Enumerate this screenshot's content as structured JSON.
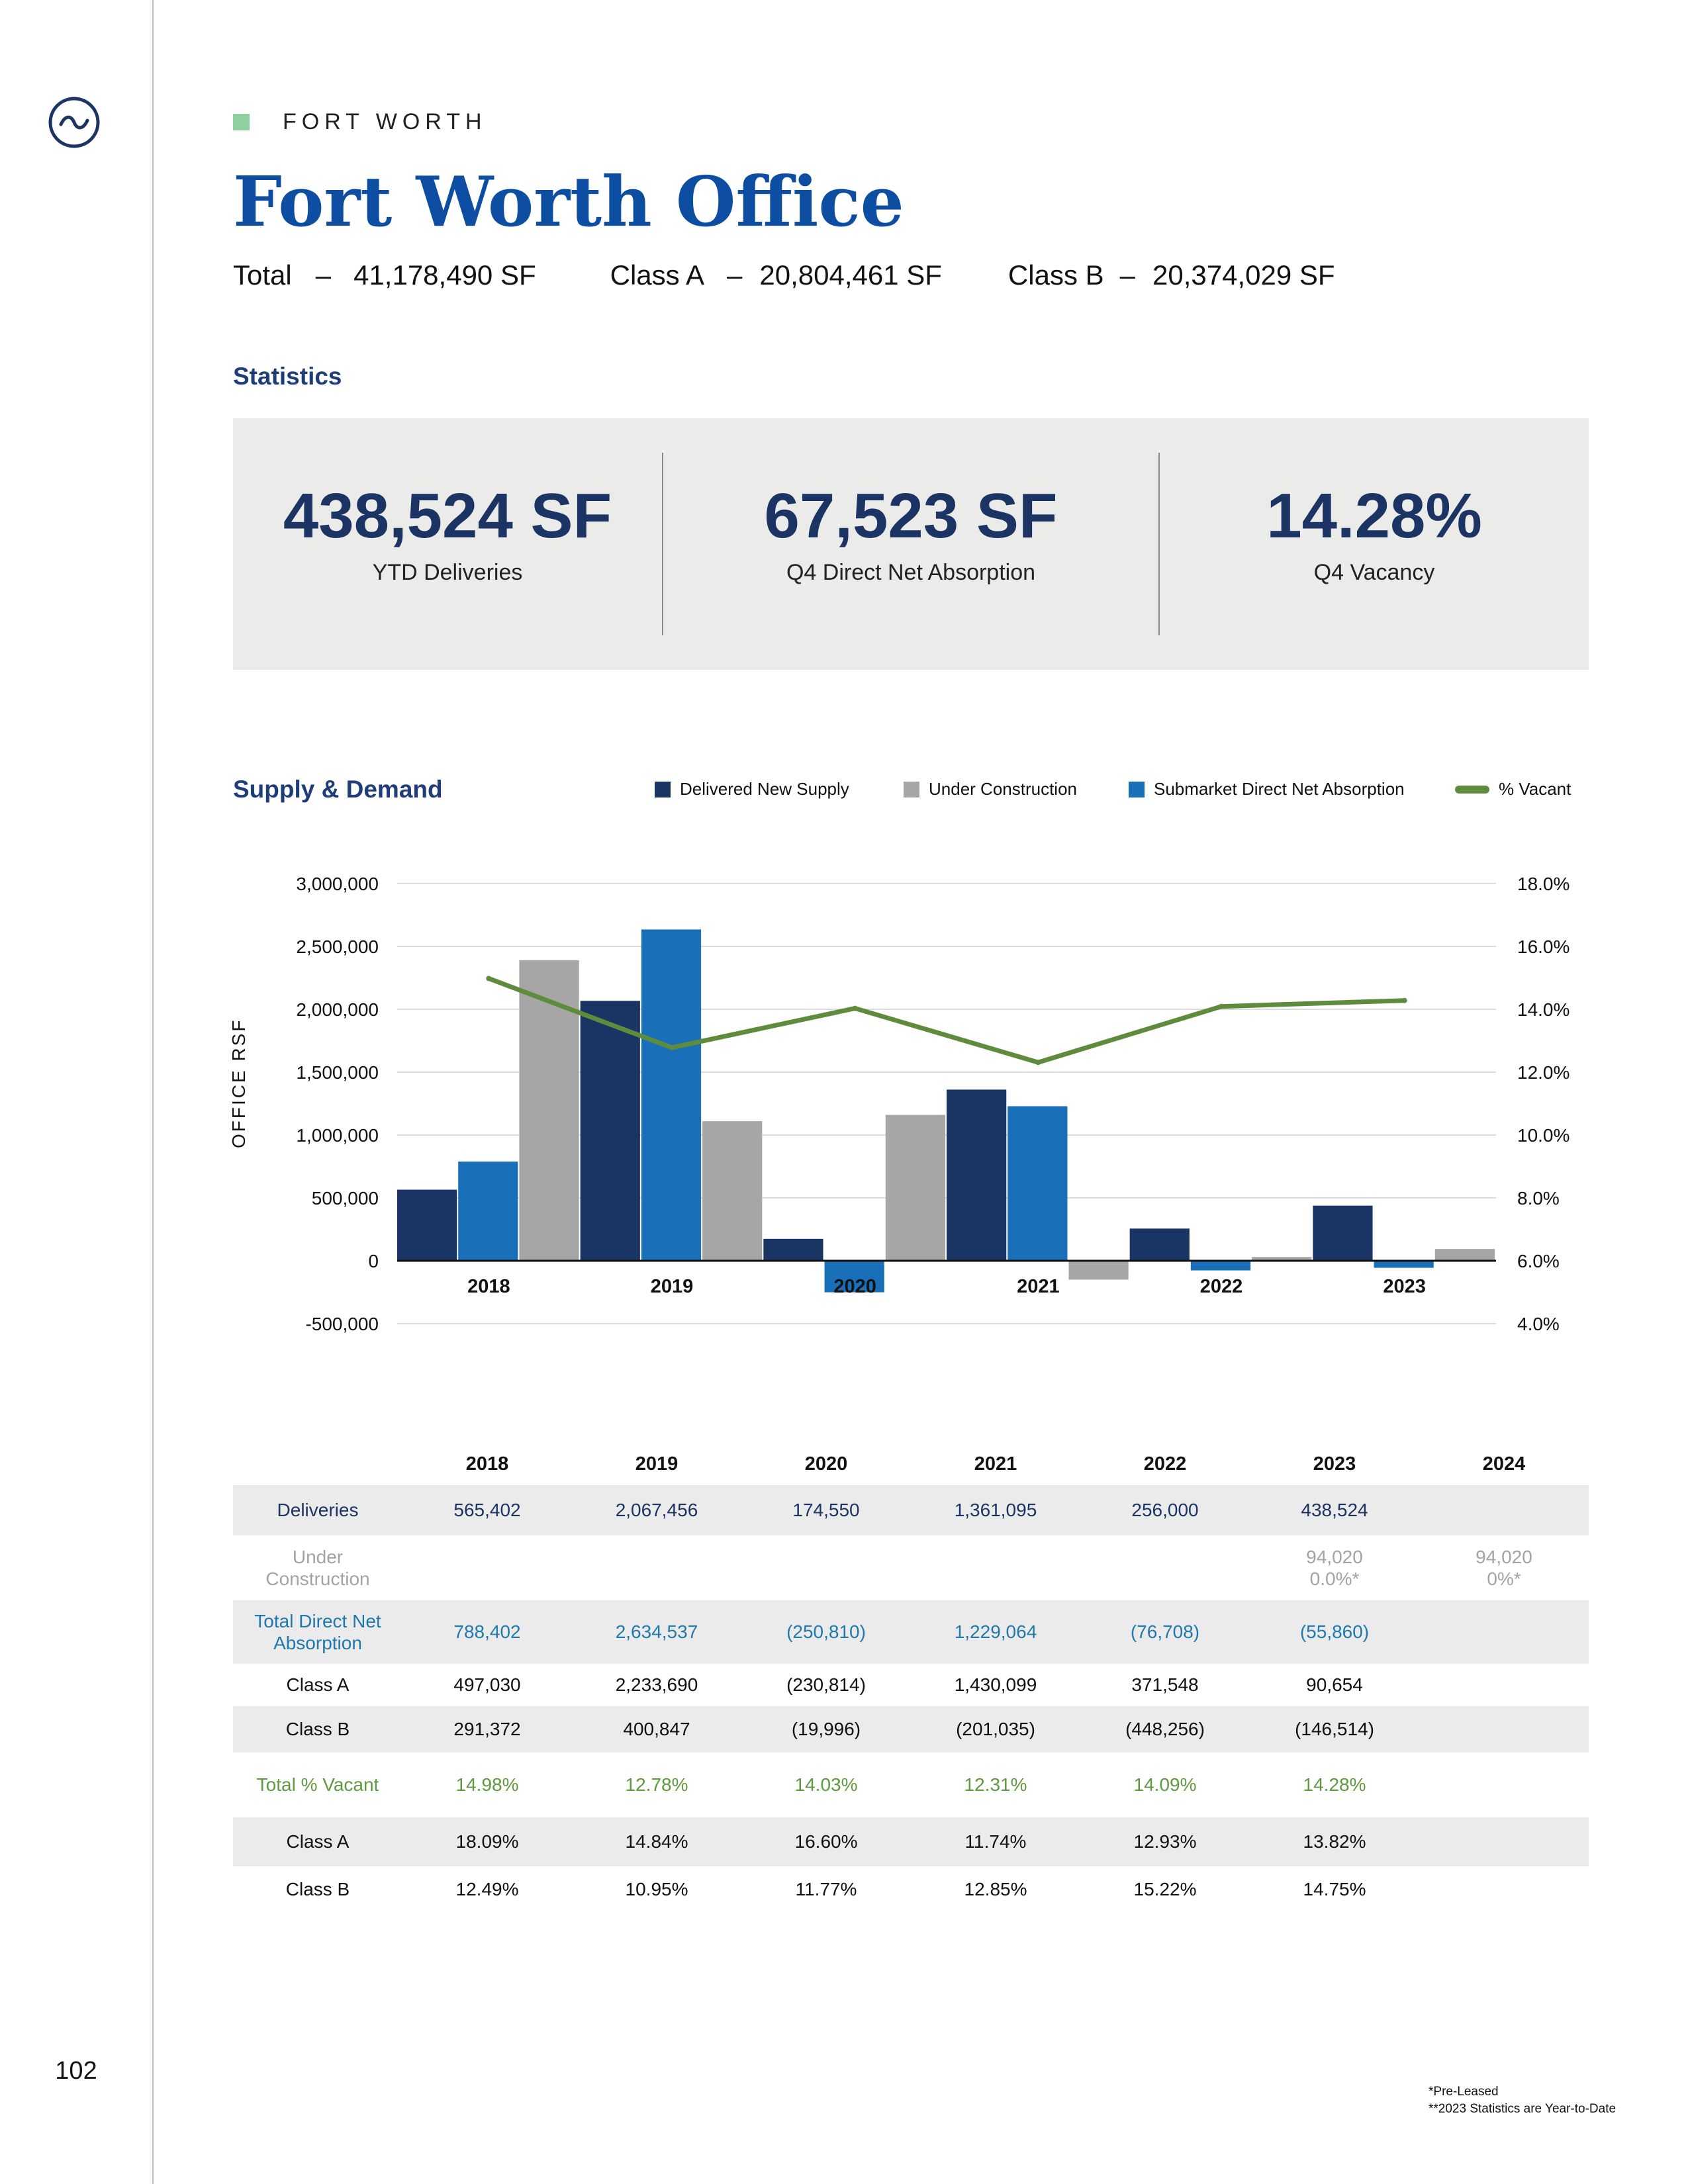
{
  "page": {
    "number": "102"
  },
  "header": {
    "eyebrow": "FORT WORTH",
    "title": "Fort Worth Office",
    "total_label": "Total",
    "total_value": "41,178,490 SF",
    "class_a_label": "Class A",
    "class_a_value": "20,804,461 SF",
    "class_b_label": "Class B",
    "class_b_value": "20,374,029 SF",
    "dash": "–"
  },
  "statistics": {
    "heading": "Statistics",
    "items": [
      {
        "value": "438,524 SF",
        "label": "YTD Deliveries"
      },
      {
        "value": "67,523 SF",
        "label": "Q4 Direct Net Absorption"
      },
      {
        "value": "14.28%",
        "label": "Q4 Vacancy"
      }
    ]
  },
  "supply_demand": {
    "heading": "Supply & Demand"
  },
  "colors": {
    "delivered": "#1a3564",
    "under_construction": "#a6a6a6",
    "absorption": "#1a6fb9",
    "vacant": "#5e8c3c"
  },
  "chart_data": {
    "type": "bar",
    "title": "",
    "ylabel": "OFFICE RSF",
    "ylim": [
      -500000,
      3000000
    ],
    "y2lim": [
      4.0,
      18.0
    ],
    "y_ticks": [
      "3,000,000",
      "2,500,000",
      "2,000,000",
      "1,500,000",
      "1,000,000",
      "500,000",
      "0",
      "-500,000"
    ],
    "y2_ticks": [
      "18.0%",
      "16.0%",
      "14.0%",
      "12.0%",
      "10.0%",
      "8.0%",
      "6.0%",
      "4.0%"
    ],
    "categories": [
      "2018",
      "2019",
      "2020",
      "2021",
      "2022",
      "2023"
    ],
    "legend_position": "top",
    "grid": true,
    "series": [
      {
        "name": "Delivered New Supply",
        "kind": "bar",
        "values": [
          565402,
          2067456,
          174550,
          1361095,
          256000,
          438524
        ]
      },
      {
        "name": "Under Construction",
        "kind": "bar",
        "values": [
          2390000,
          1110000,
          1160000,
          -150000,
          30000,
          94020
        ]
      },
      {
        "name": "Submarket Direct Net Absorption",
        "kind": "bar",
        "values": [
          788402,
          2634537,
          -250810,
          1229064,
          -76708,
          -55860
        ]
      },
      {
        "name": "% Vacant",
        "kind": "line",
        "axis": "right",
        "values": [
          14.98,
          12.78,
          14.03,
          12.31,
          14.09,
          14.28
        ]
      }
    ]
  },
  "table": {
    "years": [
      "2018",
      "2019",
      "2020",
      "2021",
      "2022",
      "2023",
      "2024"
    ],
    "rows": [
      {
        "label": "Deliveries",
        "cells": [
          "565,402",
          "2,067,456",
          "174,550",
          "1,361,095",
          "256,000",
          "438,524",
          ""
        ]
      },
      {
        "label": "Under Construction",
        "cells": [
          "",
          "",
          "",
          "",
          "",
          "94,020 0.0%*",
          "94,020 0%*"
        ]
      },
      {
        "label": "Total Direct Net Absorption",
        "cells": [
          "788,402",
          "2,634,537",
          "(250,810)",
          "1,229,064",
          "(76,708)",
          "(55,860)",
          ""
        ]
      },
      {
        "label": "Class A",
        "cells": [
          "497,030",
          "2,233,690",
          "(230,814)",
          "1,430,099",
          "371,548",
          "90,654",
          ""
        ]
      },
      {
        "label": "Class B",
        "cells": [
          "291,372",
          "400,847",
          "(19,996)",
          "(201,035)",
          "(448,256)",
          "(146,514)",
          ""
        ]
      },
      {
        "label": "Total % Vacant",
        "cells": [
          "14.98%",
          "12.78%",
          "14.03%",
          "12.31%",
          "14.09%",
          "14.28%",
          ""
        ]
      },
      {
        "label": "Class A",
        "cells": [
          "18.09%",
          "14.84%",
          "16.60%",
          "11.74%",
          "12.93%",
          "13.82%",
          ""
        ]
      },
      {
        "label": "Class B",
        "cells": [
          "12.49%",
          "10.95%",
          "11.77%",
          "12.85%",
          "15.22%",
          "14.75%",
          ""
        ]
      }
    ]
  },
  "footnotes": [
    "*Pre-Leased",
    "**2023 Statistics are Year-to-Date"
  ]
}
